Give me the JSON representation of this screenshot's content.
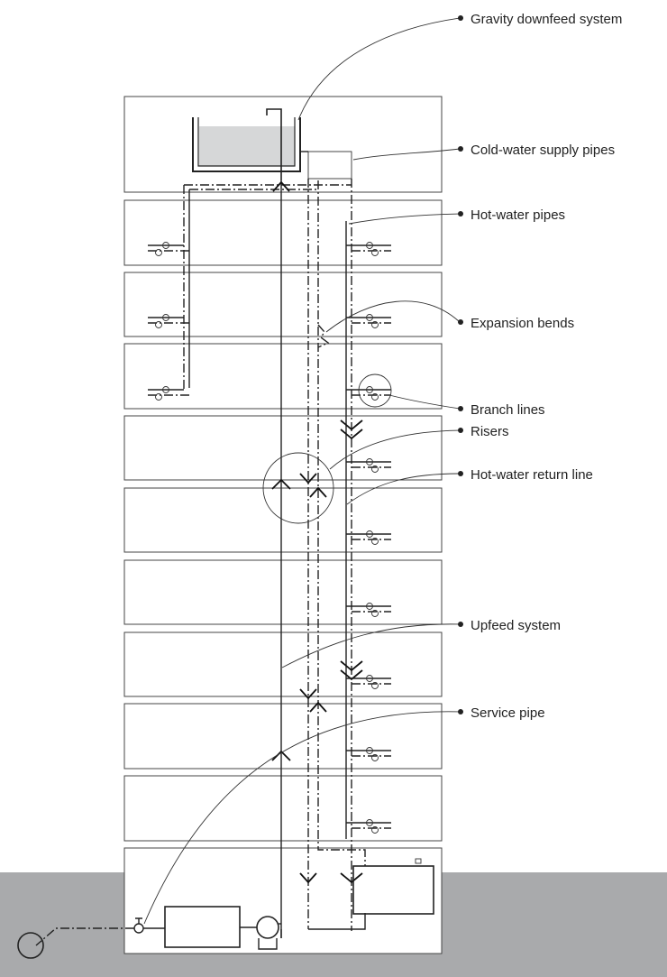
{
  "labels": [
    {
      "id": "gravity",
      "text": "Gravity downfeed system"
    },
    {
      "id": "cold",
      "text": "Cold-water supply pipes"
    },
    {
      "id": "hot",
      "text": "Hot-water pipes"
    },
    {
      "id": "expansion",
      "text": "Expansion bends"
    },
    {
      "id": "branch",
      "text": "Branch lines"
    },
    {
      "id": "risers",
      "text": "Risers"
    },
    {
      "id": "return",
      "text": "Hot-water return line"
    },
    {
      "id": "upfeed",
      "text": "Upfeed system"
    },
    {
      "id": "service",
      "text": "Service pipe"
    }
  ],
  "colors": {
    "ground": "#a9aaac",
    "water": "#d6d7d8",
    "line": "#222222",
    "background": "#ffffff"
  }
}
